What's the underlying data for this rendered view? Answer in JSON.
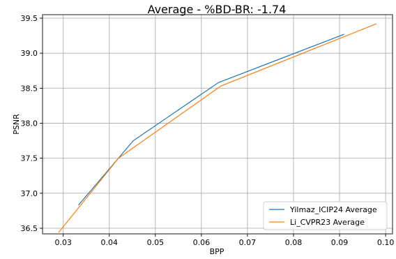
{
  "chart_data": {
    "type": "line",
    "title": "Average - %BD-BR: -1.74",
    "xlabel": "BPP",
    "ylabel": "PSNR",
    "xlim": [
      0.0255,
      0.1015
    ],
    "ylim": [
      36.42,
      39.55
    ],
    "xticks": [
      0.03,
      0.04,
      0.05,
      0.06,
      0.07,
      0.08,
      0.09,
      0.1
    ],
    "xtick_labels": [
      "0.03",
      "0.04",
      "0.05",
      "0.06",
      "0.07",
      "0.08",
      "0.09",
      "0.10"
    ],
    "yticks": [
      36.5,
      37.0,
      37.5,
      38.0,
      38.5,
      39.0,
      39.5
    ],
    "ytick_labels": [
      "36.5",
      "37.0",
      "37.5",
      "38.0",
      "38.5",
      "39.0",
      "39.5"
    ],
    "grid": true,
    "legend_position": "lower-right",
    "series": [
      {
        "name": "Yilmaz_ICIP24 Average",
        "color": "#1f77b4",
        "x": [
          0.0333,
          0.0452,
          0.0637,
          0.091
        ],
        "y": [
          36.83,
          37.75,
          38.58,
          39.27
        ]
      },
      {
        "name": "Li_CVPR23 Average",
        "color": "#ff7f0e",
        "x": [
          0.029,
          0.042,
          0.0642,
          0.098
        ],
        "y": [
          36.44,
          37.5,
          38.53,
          39.42
        ]
      }
    ]
  }
}
